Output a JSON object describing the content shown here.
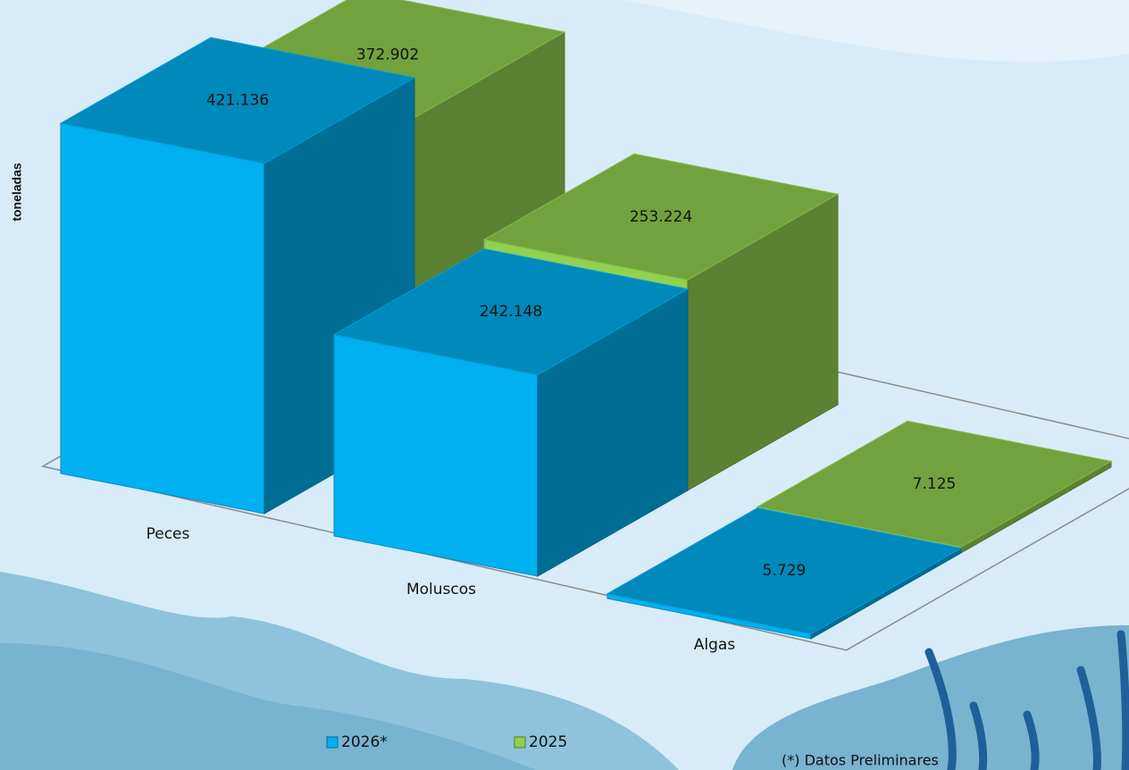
{
  "chart_data": {
    "type": "bar3d",
    "y_label": "toneladas",
    "categories": [
      "Peces",
      "Moluscos",
      "Algas"
    ],
    "series": [
      {
        "name": "2026*",
        "color": "#00b0f0",
        "values": [
          421136,
          242148,
          5729
        ],
        "value_labels": [
          "421.136",
          "242.148",
          "5.729"
        ]
      },
      {
        "name": "2025",
        "color": "#92d050",
        "values": [
          372902,
          253224,
          7125
        ],
        "value_labels": [
          "372.902",
          "253.224",
          "7.125"
        ]
      }
    ],
    "legend": "bottom",
    "note": "(*) Datos Preliminares"
  }
}
